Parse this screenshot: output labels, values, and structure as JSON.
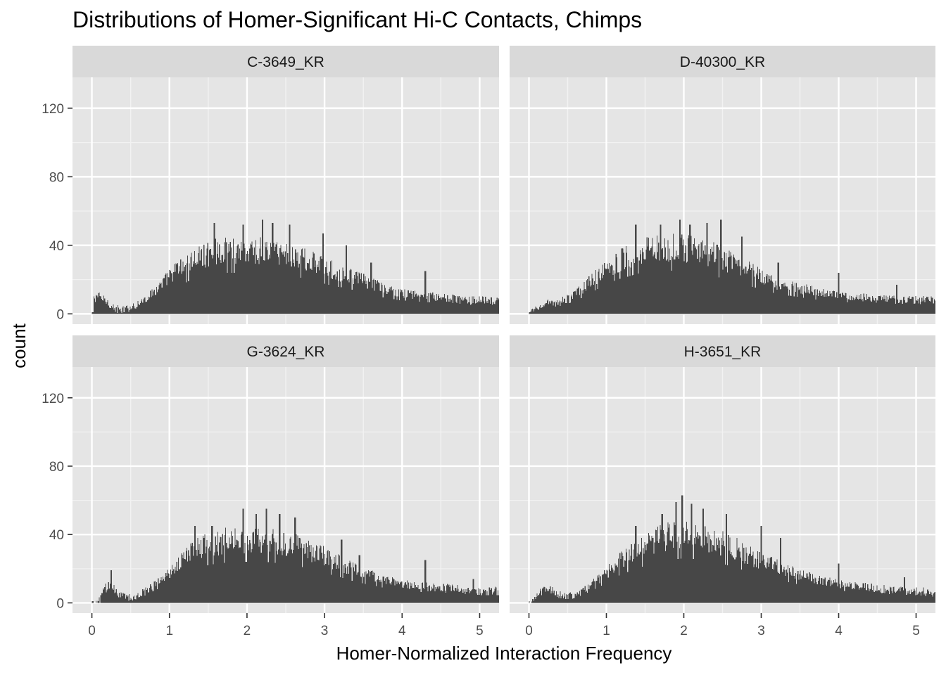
{
  "chart_data": {
    "type": "histogram",
    "title": "Distributions of Homer-Significant Hi-C Contacts, Chimps",
    "xlabel": "Homer-Normalized Interaction Frequency",
    "ylabel": "count",
    "xlim": [
      -0.25,
      5.25
    ],
    "ylim": [
      -6,
      138
    ],
    "x_ticks": [
      0,
      1,
      2,
      3,
      4,
      5
    ],
    "y_ticks": [
      0,
      40,
      80,
      120
    ],
    "grid": true,
    "legend": "none",
    "bar_color": "#474747",
    "panel_bg": "#e5e5e5",
    "strip_bg": "#d9d9d9",
    "bin_width": 0.01,
    "facets": [
      {
        "label": "C-3649_KR",
        "profile": [
          [
            0.0,
            0
          ],
          [
            0.02,
            8
          ],
          [
            0.05,
            11
          ],
          [
            0.1,
            10
          ],
          [
            0.2,
            7
          ],
          [
            0.3,
            3
          ],
          [
            0.4,
            2
          ],
          [
            0.5,
            4
          ],
          [
            0.6,
            6
          ],
          [
            0.7,
            9
          ],
          [
            0.8,
            13
          ],
          [
            0.9,
            17
          ],
          [
            1.0,
            22
          ],
          [
            1.1,
            26
          ],
          [
            1.2,
            28
          ],
          [
            1.3,
            31
          ],
          [
            1.4,
            33
          ],
          [
            1.5,
            35
          ],
          [
            1.7,
            37
          ],
          [
            2.0,
            37
          ],
          [
            2.2,
            37
          ],
          [
            2.4,
            36
          ],
          [
            2.6,
            34
          ],
          [
            2.8,
            31
          ],
          [
            3.0,
            27
          ],
          [
            3.2,
            24
          ],
          [
            3.4,
            21
          ],
          [
            3.6,
            18
          ],
          [
            3.8,
            14
          ],
          [
            4.0,
            12
          ],
          [
            4.2,
            11
          ],
          [
            4.4,
            10
          ],
          [
            4.6,
            9
          ],
          [
            4.8,
            8
          ],
          [
            5.0,
            8
          ],
          [
            5.25,
            7
          ]
        ],
        "peaks": [
          [
            1.58,
            53
          ],
          [
            1.95,
            52
          ],
          [
            2.2,
            55
          ],
          [
            2.33,
            53
          ],
          [
            2.55,
            52
          ],
          [
            2.98,
            47
          ],
          [
            3.28,
            40
          ],
          [
            3.6,
            30
          ],
          [
            4.3,
            25
          ]
        ]
      },
      {
        "label": "D-40300_KR",
        "profile": [
          [
            0.0,
            0
          ],
          [
            0.05,
            2
          ],
          [
            0.1,
            4
          ],
          [
            0.2,
            6
          ],
          [
            0.3,
            6
          ],
          [
            0.4,
            7
          ],
          [
            0.5,
            9
          ],
          [
            0.6,
            12
          ],
          [
            0.7,
            15
          ],
          [
            0.8,
            19
          ],
          [
            0.9,
            23
          ],
          [
            1.0,
            27
          ],
          [
            1.2,
            32
          ],
          [
            1.4,
            36
          ],
          [
            1.6,
            38
          ],
          [
            1.8,
            39
          ],
          [
            2.0,
            38
          ],
          [
            2.2,
            37
          ],
          [
            2.4,
            34
          ],
          [
            2.6,
            30
          ],
          [
            2.8,
            26
          ],
          [
            3.0,
            22
          ],
          [
            3.2,
            18
          ],
          [
            3.4,
            16
          ],
          [
            3.6,
            14
          ],
          [
            3.8,
            12
          ],
          [
            4.0,
            11
          ],
          [
            4.2,
            10
          ],
          [
            4.4,
            9
          ],
          [
            4.6,
            9
          ],
          [
            4.8,
            8
          ],
          [
            5.0,
            8
          ],
          [
            5.25,
            8
          ]
        ],
        "peaks": [
          [
            1.38,
            52
          ],
          [
            1.7,
            52
          ],
          [
            1.95,
            55
          ],
          [
            2.08,
            52
          ],
          [
            2.3,
            53
          ],
          [
            2.48,
            55
          ],
          [
            2.75,
            45
          ],
          [
            3.22,
            30
          ],
          [
            4.0,
            24
          ],
          [
            4.75,
            17
          ]
        ]
      },
      {
        "label": "G-3624_KR",
        "profile": [
          [
            0.0,
            0
          ],
          [
            0.1,
            1
          ],
          [
            0.15,
            8
          ],
          [
            0.2,
            10
          ],
          [
            0.25,
            11
          ],
          [
            0.3,
            7
          ],
          [
            0.4,
            4
          ],
          [
            0.5,
            3
          ],
          [
            0.6,
            5
          ],
          [
            0.7,
            7
          ],
          [
            0.8,
            11
          ],
          [
            0.9,
            14
          ],
          [
            1.0,
            18
          ],
          [
            1.1,
            23
          ],
          [
            1.2,
            27
          ],
          [
            1.3,
            30
          ],
          [
            1.5,
            34
          ],
          [
            1.7,
            36
          ],
          [
            2.0,
            37
          ],
          [
            2.2,
            37
          ],
          [
            2.4,
            36
          ],
          [
            2.6,
            34
          ],
          [
            2.8,
            31
          ],
          [
            3.0,
            27
          ],
          [
            3.2,
            23
          ],
          [
            3.4,
            19
          ],
          [
            3.6,
            16
          ],
          [
            3.8,
            13
          ],
          [
            4.0,
            11
          ],
          [
            4.2,
            10
          ],
          [
            4.4,
            9
          ],
          [
            4.6,
            9
          ],
          [
            4.8,
            8
          ],
          [
            5.0,
            7
          ],
          [
            5.25,
            7
          ]
        ],
        "peaks": [
          [
            0.25,
            19
          ],
          [
            1.33,
            45
          ],
          [
            1.55,
            45
          ],
          [
            1.95,
            55
          ],
          [
            2.12,
            52
          ],
          [
            2.25,
            55
          ],
          [
            2.42,
            52
          ],
          [
            2.62,
            50
          ],
          [
            3.22,
            37
          ],
          [
            3.45,
            28
          ],
          [
            4.3,
            25
          ],
          [
            4.92,
            14
          ]
        ]
      },
      {
        "label": "H-3651_KR",
        "profile": [
          [
            0.0,
            0
          ],
          [
            0.05,
            1
          ],
          [
            0.1,
            4
          ],
          [
            0.2,
            8
          ],
          [
            0.3,
            7
          ],
          [
            0.4,
            5
          ],
          [
            0.5,
            4
          ],
          [
            0.6,
            5
          ],
          [
            0.7,
            7
          ],
          [
            0.8,
            11
          ],
          [
            0.9,
            14
          ],
          [
            1.0,
            18
          ],
          [
            1.2,
            26
          ],
          [
            1.4,
            31
          ],
          [
            1.6,
            36
          ],
          [
            1.8,
            39
          ],
          [
            2.0,
            40
          ],
          [
            2.2,
            39
          ],
          [
            2.4,
            37
          ],
          [
            2.6,
            33
          ],
          [
            2.8,
            29
          ],
          [
            3.0,
            25
          ],
          [
            3.2,
            21
          ],
          [
            3.4,
            18
          ],
          [
            3.6,
            15
          ],
          [
            3.8,
            13
          ],
          [
            4.0,
            11
          ],
          [
            4.2,
            10
          ],
          [
            4.4,
            9
          ],
          [
            4.6,
            8
          ],
          [
            4.8,
            7
          ],
          [
            5.0,
            7
          ],
          [
            5.25,
            6
          ]
        ],
        "peaks": [
          [
            1.38,
            45
          ],
          [
            1.72,
            52
          ],
          [
            1.9,
            59
          ],
          [
            1.98,
            63
          ],
          [
            2.1,
            58
          ],
          [
            2.25,
            55
          ],
          [
            2.55,
            52
          ],
          [
            3.0,
            45
          ],
          [
            3.25,
            38
          ],
          [
            4.0,
            23
          ],
          [
            4.85,
            15
          ]
        ]
      }
    ]
  }
}
